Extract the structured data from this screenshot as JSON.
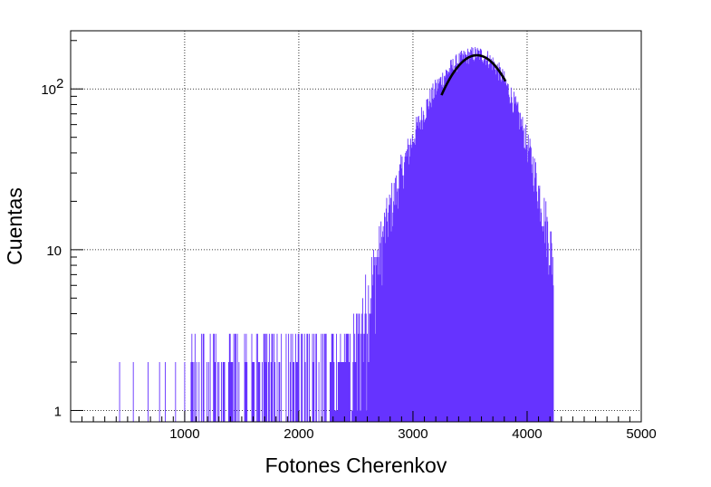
{
  "chart_data": {
    "type": "histogram",
    "xlabel": "Fotones Cherenkov",
    "ylabel": "Cuentas",
    "xlim": [
      1,
      5000
    ],
    "ylim": [
      0.85,
      230
    ],
    "y_scale": "log",
    "grid": true,
    "grid_style": "dotted",
    "x_ticks": [
      {
        "value": 1000,
        "label": "1000"
      },
      {
        "value": 2000,
        "label": "2000"
      },
      {
        "value": 3000,
        "label": "3000"
      },
      {
        "value": 4000,
        "label": "4000"
      },
      {
        "value": 5000,
        "label": "5000"
      }
    ],
    "y_ticks": [
      {
        "value": 1,
        "label": "1"
      },
      {
        "value": 10,
        "label": "10"
      },
      {
        "value": 100,
        "label": "10",
        "exponent": "2"
      }
    ],
    "histogram": {
      "color": "#6633ff",
      "bin_width": 10,
      "peak_x": 3560,
      "peak_counts": 165,
      "low_sigma": 360,
      "high_sigma": 275,
      "upper_edge": 4230,
      "sparse_tail": [
        {
          "x": 430,
          "counts": 2
        },
        {
          "x": 550,
          "counts": 2
        },
        {
          "x": 680,
          "counts": 2
        },
        {
          "x": 780,
          "counts": 2
        },
        {
          "x": 830,
          "counts": 2
        },
        {
          "x": 920,
          "counts": 2
        },
        {
          "x": 1080,
          "counts": 2
        },
        {
          "x": 1210,
          "counts": 2
        },
        {
          "x": 1290,
          "counts": 2
        },
        {
          "x": 1430,
          "counts": 3
        },
        {
          "x": 1540,
          "counts": 3
        },
        {
          "x": 1640,
          "counts": 3
        },
        {
          "x": 1710,
          "counts": 3
        },
        {
          "x": 1810,
          "counts": 3
        },
        {
          "x": 1930,
          "counts": 3
        },
        {
          "x": 2030,
          "counts": 3
        },
        {
          "x": 2150,
          "counts": 3
        },
        {
          "x": 2240,
          "counts": 3
        },
        {
          "x": 2330,
          "counts": 3
        },
        {
          "x": 2420,
          "counts": 3
        }
      ]
    },
    "fit": {
      "color": "#000000",
      "x_range": [
        3250,
        3810
      ],
      "mean": 3560,
      "sigma": 290,
      "amplitude": 162
    }
  }
}
